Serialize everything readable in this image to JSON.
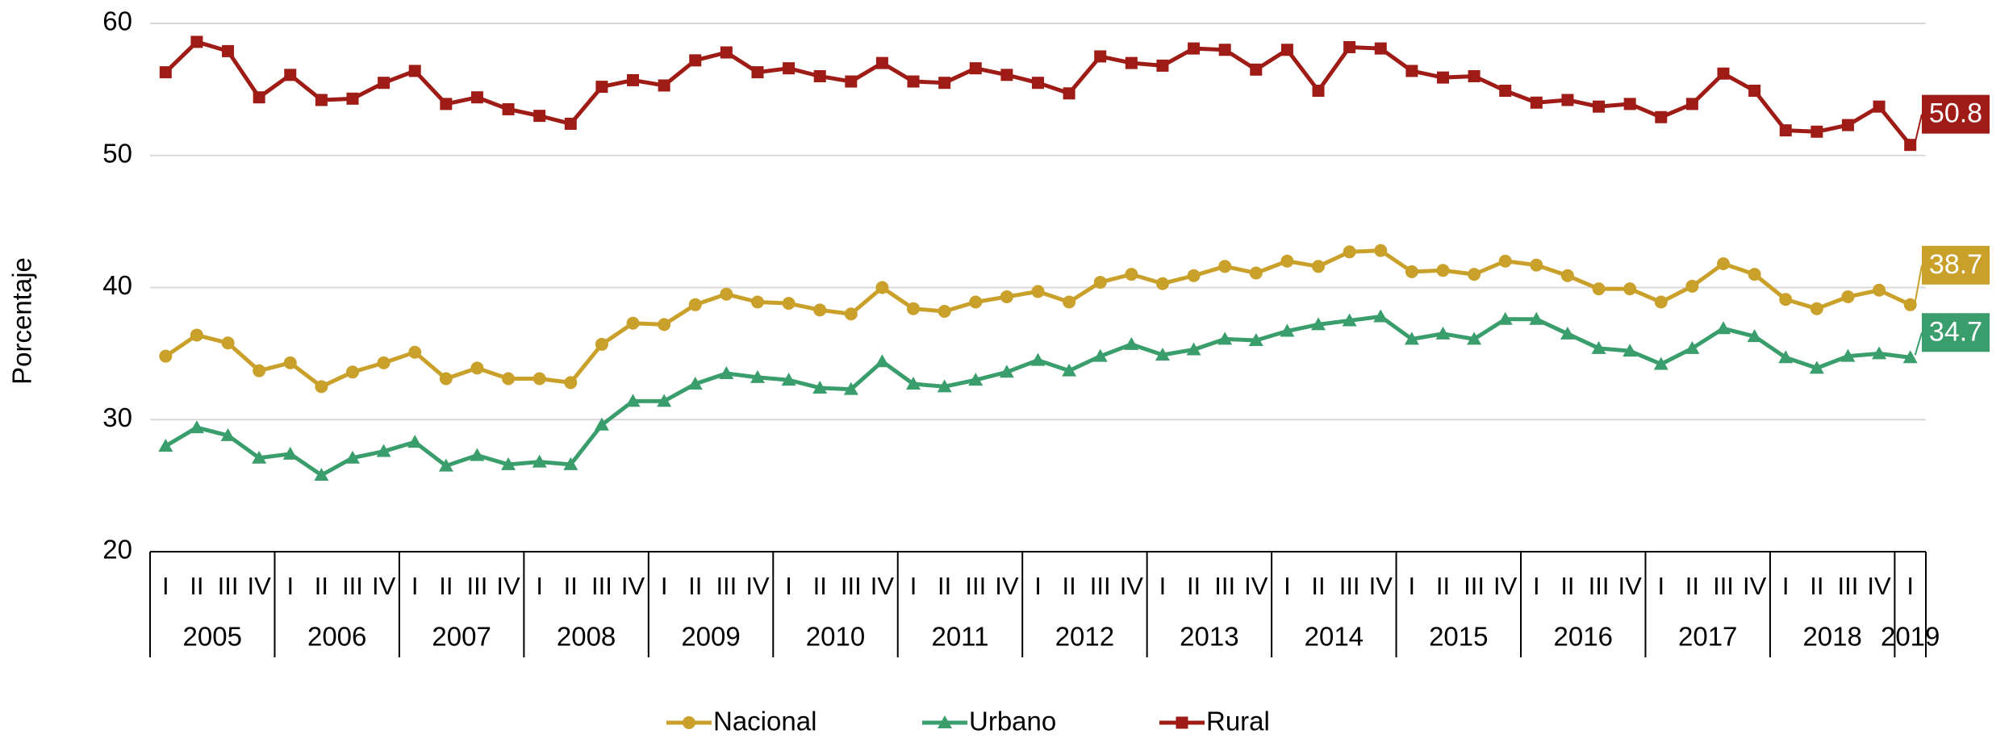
{
  "chart_data": {
    "type": "line",
    "y_label": "Porcentaje",
    "categories": [
      "I",
      "II",
      "III",
      "IV",
      "I",
      "II",
      "III",
      "IV",
      "I",
      "II",
      "III",
      "IV",
      "I",
      "II",
      "III",
      "IV",
      "I",
      "II",
      "III",
      "IV",
      "I",
      "II",
      "III",
      "IV",
      "I",
      "II",
      "III",
      "IV",
      "I",
      "II",
      "III",
      "IV",
      "I",
      "II",
      "III",
      "IV",
      "I",
      "II",
      "III",
      "IV",
      "I",
      "II",
      "III",
      "IV",
      "I",
      "II",
      "III",
      "IV",
      "I",
      "II",
      "III",
      "IV",
      "I",
      "II",
      "III",
      "IV",
      "I"
    ],
    "years": [
      "2005",
      "2006",
      "2007",
      "2008",
      "2009",
      "2010",
      "2011",
      "2012",
      "2013",
      "2014",
      "2015",
      "2016",
      "2017",
      "2018",
      "2019"
    ],
    "ylim": [
      20,
      60
    ],
    "yticks": [
      20,
      30,
      40,
      50,
      60
    ],
    "grid": true,
    "legend": "bottom",
    "series": [
      {
        "name": "Nacional",
        "color": "#c9a02a",
        "marker": "circle",
        "values": [
          34.8,
          36.4,
          35.8,
          33.7,
          34.3,
          32.5,
          33.6,
          34.3,
          35.1,
          33.1,
          33.9,
          33.1,
          33.1,
          32.8,
          35.7,
          37.3,
          37.2,
          38.7,
          39.5,
          38.9,
          38.8,
          38.3,
          38.0,
          40.0,
          38.4,
          38.2,
          38.9,
          39.3,
          39.7,
          38.9,
          40.4,
          41.0,
          40.3,
          40.9,
          41.6,
          41.1,
          42.0,
          41.6,
          42.7,
          42.8,
          41.2,
          41.3,
          41.0,
          42.0,
          41.7,
          40.9,
          39.9,
          39.9,
          38.9,
          40.1,
          41.8,
          41.0,
          39.1,
          38.4,
          39.3,
          39.8,
          38.7
        ]
      },
      {
        "name": "Urbano",
        "color": "#3a9e6c",
        "marker": "triangle",
        "values": [
          28.0,
          29.4,
          28.8,
          27.1,
          27.4,
          25.8,
          27.1,
          27.6,
          28.3,
          26.5,
          27.3,
          26.6,
          26.8,
          26.6,
          29.6,
          31.4,
          31.4,
          32.7,
          33.5,
          33.2,
          33.0,
          32.4,
          32.3,
          34.4,
          32.7,
          32.5,
          33.0,
          33.6,
          34.5,
          33.7,
          34.8,
          35.7,
          34.9,
          35.3,
          36.1,
          36.0,
          36.7,
          37.2,
          37.5,
          37.8,
          36.1,
          36.5,
          36.1,
          37.6,
          37.6,
          36.5,
          35.4,
          35.2,
          34.2,
          35.4,
          36.9,
          36.3,
          34.7,
          33.9,
          34.8,
          35.0,
          34.7
        ]
      },
      {
        "name": "Rural",
        "color": "#9e1b16",
        "marker": "square",
        "values": [
          56.3,
          58.6,
          57.9,
          54.4,
          56.1,
          54.2,
          54.3,
          55.5,
          56.4,
          53.9,
          54.4,
          53.5,
          53.0,
          52.4,
          55.2,
          55.7,
          55.3,
          57.2,
          57.8,
          56.3,
          56.6,
          56.0,
          55.6,
          57.0,
          55.6,
          55.5,
          56.6,
          56.1,
          55.5,
          54.7,
          57.5,
          57.0,
          56.8,
          58.1,
          58.0,
          56.5,
          58.0,
          54.9,
          58.2,
          58.1,
          56.4,
          55.9,
          56.0,
          54.9,
          54.0,
          54.2,
          53.7,
          53.9,
          52.9,
          53.9,
          56.2,
          54.9,
          51.9,
          51.8,
          52.3,
          53.7,
          50.8
        ]
      }
    ]
  }
}
